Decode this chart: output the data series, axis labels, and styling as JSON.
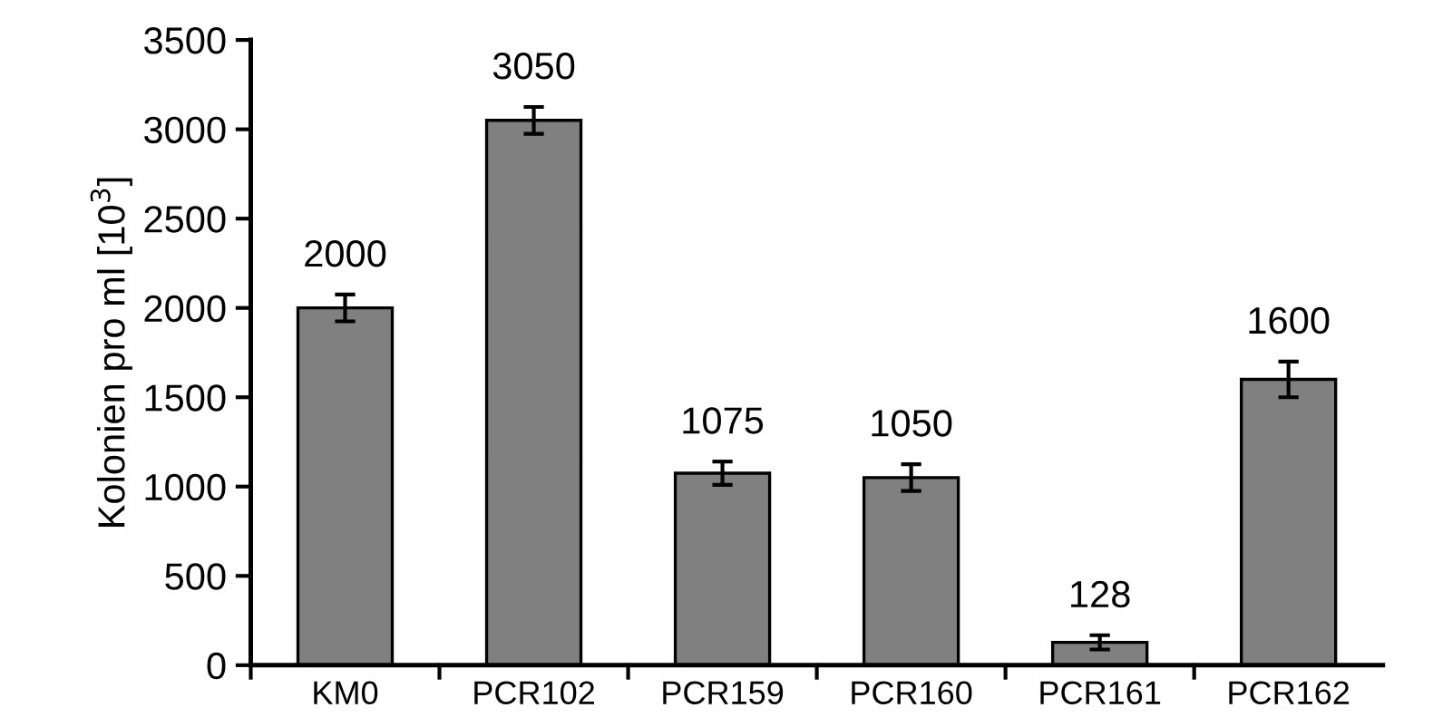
{
  "chart_data": {
    "type": "bar",
    "ylabel": "Kolonien pro ml [10$^{3}$]",
    "categories": [
      "KM0",
      "PCR102",
      "PCR159",
      "PCR160",
      "PCR161",
      "PCR162"
    ],
    "values": [
      2000,
      3050,
      1075,
      1050,
      128,
      1600
    ],
    "errors": [
      75,
      75,
      65,
      75,
      40,
      100
    ],
    "color": "#808080",
    "ylim": [
      0,
      3500
    ],
    "yticks": [
      0,
      500,
      1000,
      1500,
      2000,
      2500,
      3000,
      3500
    ],
    "grid": false,
    "data_labels": true
  }
}
